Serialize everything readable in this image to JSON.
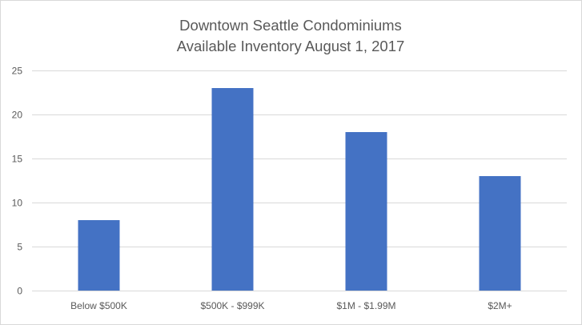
{
  "chart_data": {
    "type": "bar",
    "title_lines": [
      "Downtown Seattle Condominiums",
      "Available Inventory August 1, 2017"
    ],
    "categories": [
      "Below $500K",
      "$500K - $999K",
      "$1M - $1.99M",
      "$2M+"
    ],
    "values": [
      8,
      23,
      18,
      13
    ],
    "ylim": [
      0,
      25
    ],
    "yticks": [
      "0",
      "5",
      "10",
      "15",
      "20",
      "25"
    ],
    "grid": true,
    "legend": "none",
    "bar_color": "#4472c4",
    "grid_color": "#d9d9d9",
    "text_color": "#595959"
  }
}
